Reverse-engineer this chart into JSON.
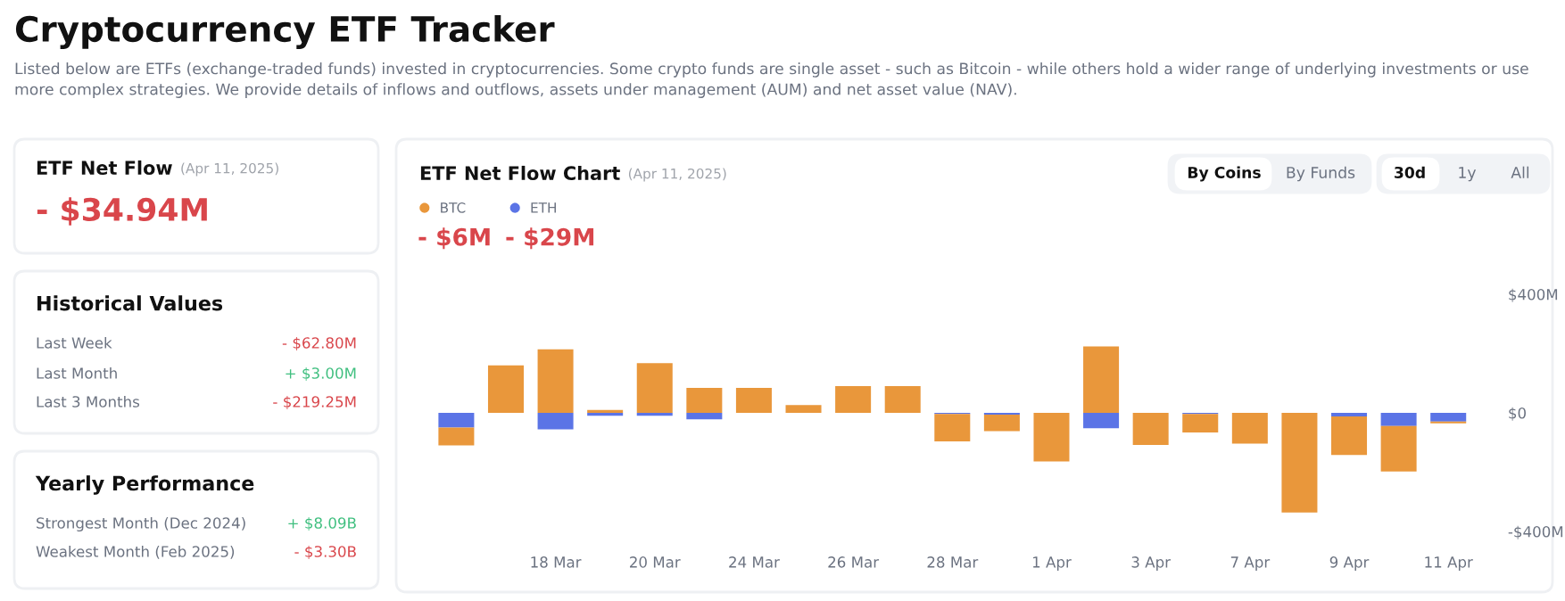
{
  "chart_data": [
    {
      "type": "other",
      "title": "Cryptocurrency ETF Tracker",
      "subtitle": "Listed below are ETFs (exchange-traded funds) invested in cryptocurrencies. Some crypto funds are single asset - such as Bitcoin - while others hold a wider range of underlying investments or use more complex strategies. We provide details of inflows and outflows, assets under management (AUM) and net asset value (NAV).",
      "annotations": [
        "ETF Net Flow",
        "(Apr 11, 2025)",
        "- $34.94M",
        "Historical Values",
        "Last Week",
        "- $62.80M",
        "Last Month",
        "+ $3.00M",
        "Last 3 Months",
        "- $219.25M",
        "Yearly Performance",
        "Strongest Month (Dec 2024)",
        "+ $8.09B",
        "Weakest Month (Feb 2025)",
        "- $3.30B"
      ]
    },
    {
      "type": "bar",
      "title": "ETF Net Flow Chart",
      "subtitle": "(Apr 11, 2025)",
      "categories": [
        null,
        null,
        "18 Mar",
        null,
        "20 Mar",
        null,
        "24 Mar",
        null,
        "26 Mar",
        null,
        "28 Mar",
        null,
        "1 Apr",
        null,
        "3 Apr",
        null,
        "7 Apr",
        null,
        "9 Apr",
        null,
        "11 Apr"
      ],
      "stacked": true,
      "series": [
        {
          "name": "ETH",
          "color": "#5b74e6",
          "values": [
            -50,
            0,
            -56,
            -10,
            -10,
            -22,
            0,
            0,
            0,
            0,
            -4,
            -6,
            0,
            -52,
            0,
            -4,
            0,
            0,
            -12,
            -44,
            -29
          ]
        },
        {
          "name": "BTC",
          "color": "#e9973b",
          "values": [
            -60,
            160,
            214,
            10,
            168,
            84,
            84,
            26,
            90,
            90,
            -92,
            -56,
            -164,
            224,
            -108,
            -62,
            -104,
            -336,
            -130,
            -154,
            -6
          ]
        }
      ],
      "ylim": [
        -400,
        400
      ],
      "yticks": [
        {
          "value": -400,
          "label": "-$400M"
        },
        {
          "value": 0,
          "label": "$0"
        },
        {
          "value": 400,
          "label": "$400M"
        }
      ],
      "legend": "top left",
      "annotations": [
        "- $6M",
        "- $29M",
        "By Coins",
        "By Funds",
        "30d",
        "1y",
        "All"
      ]
    }
  ]
}
